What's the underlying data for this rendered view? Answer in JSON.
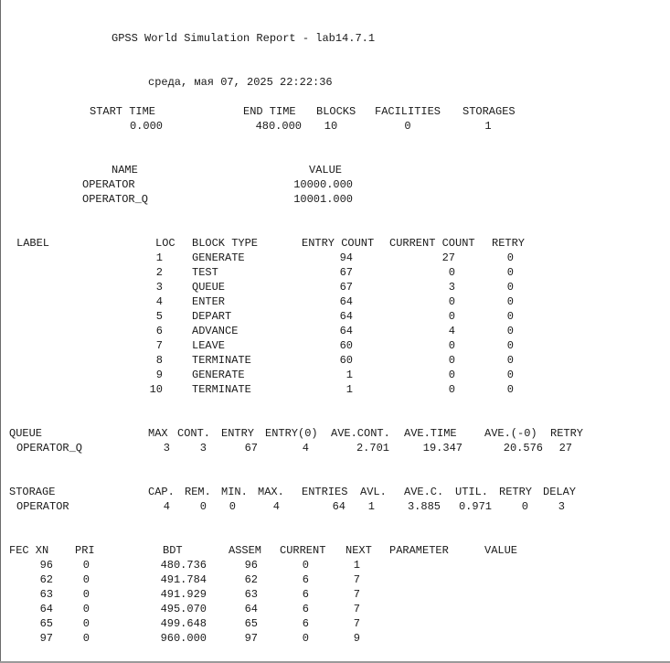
{
  "report": {
    "title": "GPSS World Simulation Report - lab14.7.1",
    "timestamp": "среда, мая 07, 2025 22:22:36"
  },
  "summary": {
    "headers": [
      "START TIME",
      "END TIME",
      "BLOCKS",
      "FACILITIES",
      "STORAGES"
    ],
    "values": [
      "0.000",
      "480.000",
      "10",
      "0",
      "1"
    ]
  },
  "names": {
    "headers": [
      "NAME",
      "VALUE"
    ],
    "rows": [
      [
        "OPERATOR",
        "10000.000"
      ],
      [
        "OPERATOR_Q",
        "10001.000"
      ]
    ]
  },
  "blocks": {
    "headers": [
      "LABEL",
      "LOC",
      "BLOCK TYPE",
      "ENTRY COUNT",
      "CURRENT COUNT",
      "RETRY"
    ],
    "rows": [
      [
        "1",
        "GENERATE",
        "94",
        "27",
        "0"
      ],
      [
        "2",
        "TEST",
        "67",
        "0",
        "0"
      ],
      [
        "3",
        "QUEUE",
        "67",
        "3",
        "0"
      ],
      [
        "4",
        "ENTER",
        "64",
        "0",
        "0"
      ],
      [
        "5",
        "DEPART",
        "64",
        "0",
        "0"
      ],
      [
        "6",
        "ADVANCE",
        "64",
        "4",
        "0"
      ],
      [
        "7",
        "LEAVE",
        "60",
        "0",
        "0"
      ],
      [
        "8",
        "TERMINATE",
        "60",
        "0",
        "0"
      ],
      [
        "9",
        "GENERATE",
        "1",
        "0",
        "0"
      ],
      [
        "10",
        "TERMINATE",
        "1",
        "0",
        "0"
      ]
    ]
  },
  "queue": {
    "headers": [
      "QUEUE",
      "MAX",
      "CONT.",
      "ENTRY",
      "ENTRY(0)",
      "AVE.CONT.",
      "AVE.TIME",
      "AVE.(-0)",
      "RETRY"
    ],
    "rows": [
      [
        "OPERATOR_Q",
        "3",
        "3",
        "67",
        "4",
        "2.701",
        "19.347",
        "20.576",
        "27"
      ]
    ]
  },
  "storage": {
    "headers": [
      "STORAGE",
      "CAP.",
      "REM.",
      "MIN.",
      "MAX.",
      "ENTRIES",
      "AVL.",
      "AVE.C.",
      "UTIL.",
      "RETRY",
      "DELAY"
    ],
    "rows": [
      [
        "OPERATOR",
        "4",
        "0",
        "0",
        "4",
        "64",
        "1",
        "3.885",
        "0.971",
        "0",
        "3"
      ]
    ]
  },
  "fec": {
    "headers": [
      "FEC XN",
      "PRI",
      "BDT",
      "ASSEM",
      "CURRENT",
      "NEXT",
      "PARAMETER",
      "VALUE"
    ],
    "rows": [
      [
        "96",
        "0",
        "480.736",
        "96",
        "0",
        "1"
      ],
      [
        "62",
        "0",
        "491.784",
        "62",
        "6",
        "7"
      ],
      [
        "63",
        "0",
        "491.929",
        "63",
        "6",
        "7"
      ],
      [
        "64",
        "0",
        "495.070",
        "64",
        "6",
        "7"
      ],
      [
        "65",
        "0",
        "499.648",
        "65",
        "6",
        "7"
      ],
      [
        "97",
        "0",
        "960.000",
        "97",
        "0",
        "9"
      ]
    ]
  }
}
